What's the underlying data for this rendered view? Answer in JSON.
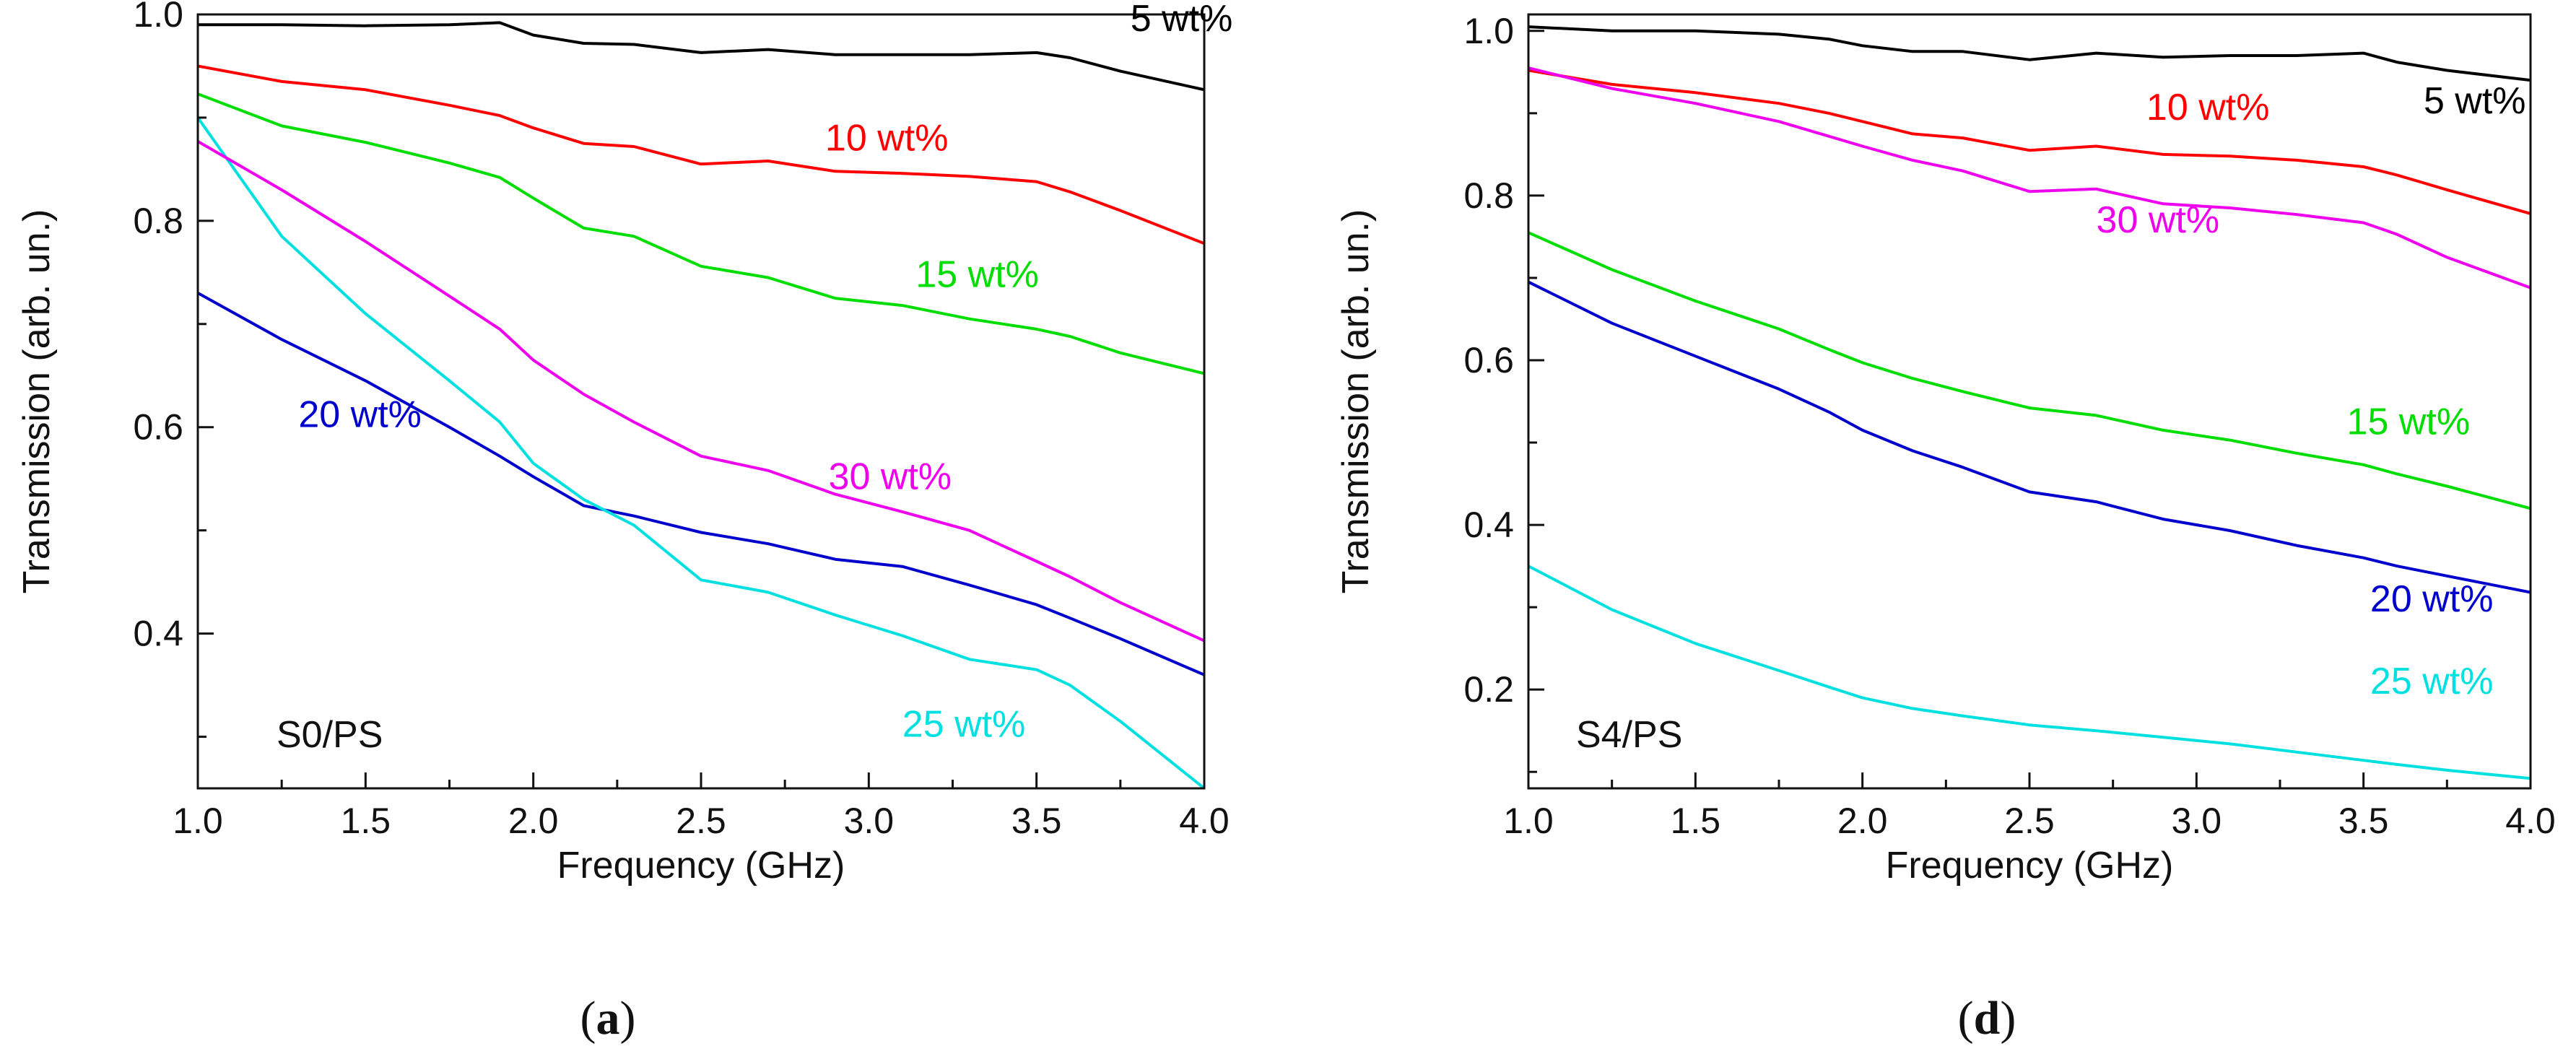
{
  "chart_data": [
    {
      "type": "line",
      "panel": "a",
      "caption_open": "(",
      "caption_letter": "a",
      "caption_close": ")",
      "sample_label": "S0/PS",
      "xlabel": "Frequency (GHz)",
      "ylabel": "Transmission (arb. un.)",
      "xlim": [
        1.0,
        4.0
      ],
      "ylim": [
        0.25,
        1.0
      ],
      "xticks": [
        "1.0",
        "1.5",
        "2.0",
        "2.5",
        "3.0",
        "3.5",
        "4.0"
      ],
      "yticks": [
        "0.4",
        "0.6",
        "0.8",
        "1.0"
      ],
      "series": [
        {
          "name": "5 wt%",
          "color": "#000000",
          "x": [
            1.0,
            1.25,
            1.5,
            1.75,
            1.9,
            2.0,
            2.15,
            2.3,
            2.5,
            2.7,
            2.9,
            3.1,
            3.3,
            3.5,
            3.6,
            3.75,
            4.0
          ],
          "y": [
            0.99,
            0.99,
            0.989,
            0.99,
            0.992,
            0.98,
            0.972,
            0.971,
            0.963,
            0.966,
            0.961,
            0.961,
            0.961,
            0.963,
            0.958,
            0.945,
            0.927
          ]
        },
        {
          "name": "10 wt%",
          "color": "#ff0000",
          "x": [
            1.0,
            1.25,
            1.5,
            1.75,
            1.9,
            2.0,
            2.15,
            2.3,
            2.5,
            2.7,
            2.9,
            3.1,
            3.3,
            3.5,
            3.6,
            3.75,
            4.0
          ],
          "y": [
            0.95,
            0.935,
            0.927,
            0.912,
            0.902,
            0.89,
            0.875,
            0.872,
            0.855,
            0.858,
            0.848,
            0.846,
            0.843,
            0.838,
            0.828,
            0.81,
            0.778
          ]
        },
        {
          "name": "15 wt%",
          "color": "#00dd00",
          "x": [
            1.0,
            1.25,
            1.5,
            1.75,
            1.9,
            2.0,
            2.15,
            2.3,
            2.5,
            2.7,
            2.9,
            3.1,
            3.3,
            3.5,
            3.6,
            3.75,
            4.0
          ],
          "y": [
            0.923,
            0.892,
            0.876,
            0.856,
            0.842,
            0.822,
            0.793,
            0.785,
            0.756,
            0.745,
            0.725,
            0.718,
            0.705,
            0.695,
            0.688,
            0.672,
            0.652
          ]
        },
        {
          "name": "20 wt%",
          "color": "#0000cc",
          "x": [
            1.0,
            1.25,
            1.5,
            1.75,
            1.9,
            2.0,
            2.15,
            2.3,
            2.5,
            2.7,
            2.9,
            3.1,
            3.3,
            3.5,
            3.6,
            3.75,
            4.0
          ],
          "y": [
            0.73,
            0.685,
            0.645,
            0.6,
            0.572,
            0.552,
            0.524,
            0.514,
            0.498,
            0.487,
            0.472,
            0.465,
            0.447,
            0.428,
            0.415,
            0.395,
            0.36
          ]
        },
        {
          "name": "25 wt%",
          "color": "#00e0e0",
          "x": [
            1.0,
            1.25,
            1.5,
            1.75,
            1.9,
            2.0,
            2.15,
            2.3,
            2.5,
            2.7,
            2.9,
            3.1,
            3.3,
            3.5,
            3.6,
            3.75,
            4.0
          ],
          "y": [
            0.9,
            0.785,
            0.71,
            0.645,
            0.605,
            0.565,
            0.53,
            0.505,
            0.452,
            0.44,
            0.418,
            0.398,
            0.375,
            0.365,
            0.35,
            0.315,
            0.25
          ]
        },
        {
          "name": "30 wt%",
          "color": "#ee00ee",
          "x": [
            1.0,
            1.25,
            1.5,
            1.75,
            1.9,
            2.0,
            2.15,
            2.3,
            2.5,
            2.7,
            2.9,
            3.1,
            3.3,
            3.5,
            3.6,
            3.75,
            4.0
          ],
          "y": [
            0.877,
            0.83,
            0.78,
            0.727,
            0.695,
            0.665,
            0.632,
            0.605,
            0.572,
            0.558,
            0.535,
            0.518,
            0.5,
            0.47,
            0.455,
            0.43,
            0.393
          ]
        }
      ],
      "annotations": [
        {
          "text": "5 wt%",
          "series": "5 wt%",
          "x": 3.78,
          "y": 0.984
        },
        {
          "text": "10 wt%",
          "series": "10 wt%",
          "x": 2.87,
          "y": 0.868
        },
        {
          "text": "15 wt%",
          "series": "15 wt%",
          "x": 3.14,
          "y": 0.736
        },
        {
          "text": "20 wt%",
          "series": "20 wt%",
          "x": 1.3,
          "y": 0.6
        },
        {
          "text": "30 wt%",
          "series": "30 wt%",
          "x": 2.88,
          "y": 0.54
        },
        {
          "text": "25 wt%",
          "series": "25 wt%",
          "x": 3.1,
          "y": 0.3
        }
      ]
    },
    {
      "type": "line",
      "panel": "d",
      "caption_open": "(",
      "caption_letter": "d",
      "caption_close": ")",
      "sample_label": "S4/PS",
      "xlabel": "Frequency (GHz)",
      "ylabel": "Transmission (arb. un.)",
      "xlim": [
        1.0,
        4.0
      ],
      "ylim": [
        0.08,
        1.02
      ],
      "xticks": [
        "1.0",
        "1.5",
        "2.0",
        "2.5",
        "3.0",
        "3.5",
        "4.0"
      ],
      "yticks": [
        "0.2",
        "0.4",
        "0.6",
        "0.8",
        "1.0"
      ],
      "series": [
        {
          "name": "5 wt%",
          "color": "#000000",
          "x": [
            1.0,
            1.25,
            1.5,
            1.75,
            1.9,
            2.0,
            2.15,
            2.3,
            2.5,
            2.7,
            2.9,
            3.1,
            3.3,
            3.5,
            3.6,
            3.75,
            4.0
          ],
          "y": [
            1.005,
            1.0,
            1.0,
            0.996,
            0.99,
            0.982,
            0.975,
            0.975,
            0.965,
            0.973,
            0.968,
            0.97,
            0.97,
            0.973,
            0.962,
            0.952,
            0.94
          ]
        },
        {
          "name": "10 wt%",
          "color": "#ff0000",
          "x": [
            1.0,
            1.25,
            1.5,
            1.75,
            1.9,
            2.0,
            2.15,
            2.3,
            2.5,
            2.7,
            2.9,
            3.1,
            3.3,
            3.5,
            3.6,
            3.75,
            4.0
          ],
          "y": [
            0.952,
            0.935,
            0.925,
            0.912,
            0.9,
            0.89,
            0.875,
            0.87,
            0.855,
            0.86,
            0.85,
            0.848,
            0.843,
            0.835,
            0.825,
            0.807,
            0.778
          ]
        },
        {
          "name": "15 wt%",
          "color": "#00dd00",
          "x": [
            1.0,
            1.25,
            1.5,
            1.75,
            1.9,
            2.0,
            2.15,
            2.3,
            2.5,
            2.7,
            2.9,
            3.1,
            3.3,
            3.5,
            3.6,
            3.75,
            4.0
          ],
          "y": [
            0.755,
            0.71,
            0.672,
            0.638,
            0.613,
            0.597,
            0.578,
            0.562,
            0.542,
            0.533,
            0.515,
            0.503,
            0.487,
            0.473,
            0.462,
            0.447,
            0.42
          ]
        },
        {
          "name": "20 wt%",
          "color": "#0000cc",
          "x": [
            1.0,
            1.25,
            1.5,
            1.75,
            1.9,
            2.0,
            2.15,
            2.3,
            2.5,
            2.7,
            2.9,
            3.1,
            3.3,
            3.5,
            3.6,
            3.75,
            4.0
          ],
          "y": [
            0.695,
            0.645,
            0.605,
            0.565,
            0.537,
            0.515,
            0.49,
            0.47,
            0.44,
            0.428,
            0.407,
            0.393,
            0.375,
            0.36,
            0.35,
            0.338,
            0.318
          ]
        },
        {
          "name": "25 wt%",
          "color": "#00e0e0",
          "x": [
            1.0,
            1.25,
            1.5,
            1.75,
            1.9,
            2.0,
            2.15,
            2.3,
            2.5,
            2.7,
            2.9,
            3.1,
            3.3,
            3.5,
            3.6,
            3.75,
            4.0
          ],
          "y": [
            0.35,
            0.297,
            0.256,
            0.223,
            0.203,
            0.19,
            0.177,
            0.168,
            0.157,
            0.15,
            0.142,
            0.134,
            0.124,
            0.114,
            0.109,
            0.102,
            0.092
          ]
        },
        {
          "name": "30 wt%",
          "color": "#ee00ee",
          "x": [
            1.0,
            1.25,
            1.5,
            1.75,
            1.9,
            2.0,
            2.15,
            2.3,
            2.5,
            2.7,
            2.9,
            3.1,
            3.3,
            3.5,
            3.6,
            3.75,
            4.0
          ],
          "y": [
            0.955,
            0.93,
            0.912,
            0.89,
            0.872,
            0.86,
            0.843,
            0.83,
            0.805,
            0.808,
            0.79,
            0.785,
            0.777,
            0.767,
            0.753,
            0.725,
            0.688
          ]
        }
      ],
      "annotations": [
        {
          "text": "10 wt%",
          "series": "10 wt%",
          "x": 2.85,
          "y": 0.892
        },
        {
          "text": "5 wt%",
          "series": "5 wt%",
          "x": 3.68,
          "y": 0.9
        },
        {
          "text": "30 wt%",
          "series": "30 wt%",
          "x": 2.7,
          "y": 0.755
        },
        {
          "text": "15 wt%",
          "series": "15 wt%",
          "x": 3.45,
          "y": 0.51
        },
        {
          "text": "20 wt%",
          "series": "20 wt%",
          "x": 3.52,
          "y": 0.295
        },
        {
          "text": "25 wt%",
          "series": "25 wt%",
          "x": 3.52,
          "y": 0.195
        }
      ]
    }
  ]
}
